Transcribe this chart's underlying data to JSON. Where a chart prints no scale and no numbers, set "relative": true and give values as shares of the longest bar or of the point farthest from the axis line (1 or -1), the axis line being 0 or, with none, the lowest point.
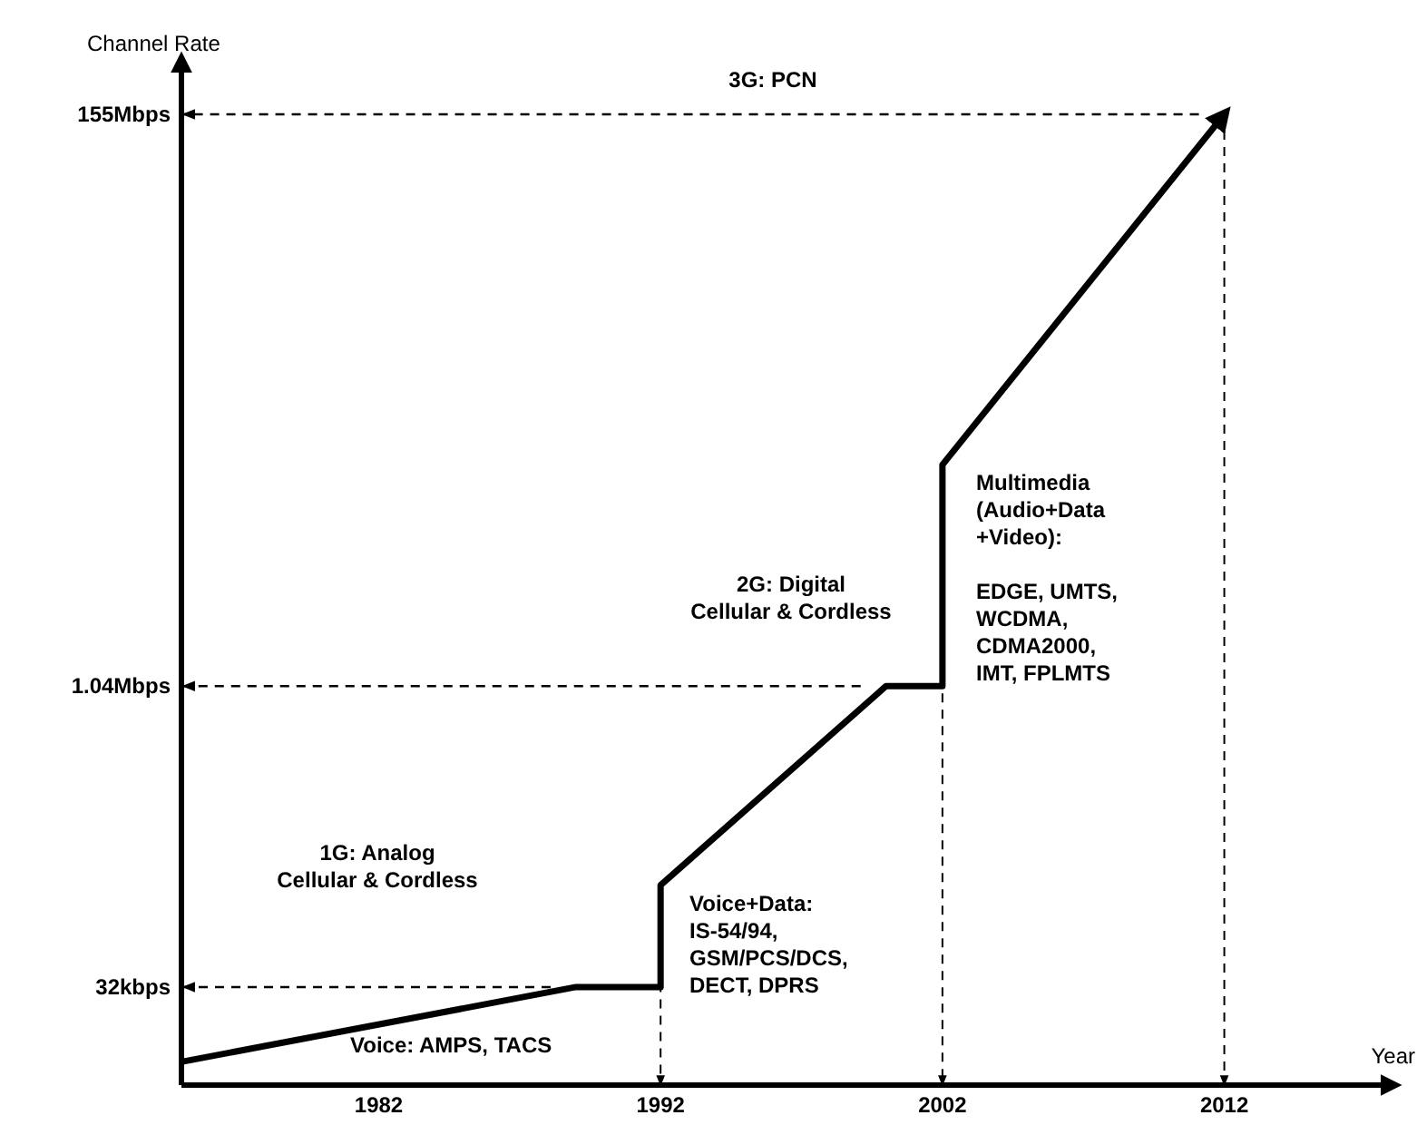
{
  "chart_data": {
    "type": "line",
    "xlabel": "Year",
    "ylabel": "Channel Rate",
    "relative": true,
    "x": [
      1975,
      1989,
      1992,
      1992,
      2000,
      2002,
      2002,
      2012
    ],
    "series": [
      {
        "color": "#000000",
        "values": [
          0.024,
          0.101,
          0.101,
          0.206,
          0.411,
          0.411,
          0.639,
          1
        ]
      }
    ],
    "xlim": [
      1975,
      2018
    ],
    "xticks": [
      1982,
      1992,
      2002,
      2012
    ],
    "ref_lines": [
      {
        "axis": "y",
        "value": 0.101,
        "label": "32kbps",
        "line_style": "dashed"
      },
      {
        "axis": "y",
        "value": 0.411,
        "label": "1.04Mbps",
        "line_style": "dashed"
      },
      {
        "axis": "y",
        "value": 1,
        "label": "155Mbps",
        "line_style": "dashed"
      },
      {
        "axis": "x",
        "value": 1992,
        "line_style": "dashed"
      },
      {
        "axis": "x",
        "value": 2002,
        "line_style": "dashed"
      },
      {
        "axis": "x",
        "value": 2012,
        "line_style": "dashed"
      }
    ],
    "annotations": [
      "3G: PCN",
      "Multimedia\n(Audio+Data\n+Video):\n\nEDGE, UMTS,\nWCDMA,\nCDMA2000,\nIMT, FPLMTS",
      "2G: Digital\nCellular & Cordless",
      "Voice+Data:\nIS-54/94,\nGSM/PCS/DCS,\nDECT, DPRS",
      "1G: Analog\nCellular & Cordless",
      "Voice: AMPS, TACS"
    ]
  }
}
